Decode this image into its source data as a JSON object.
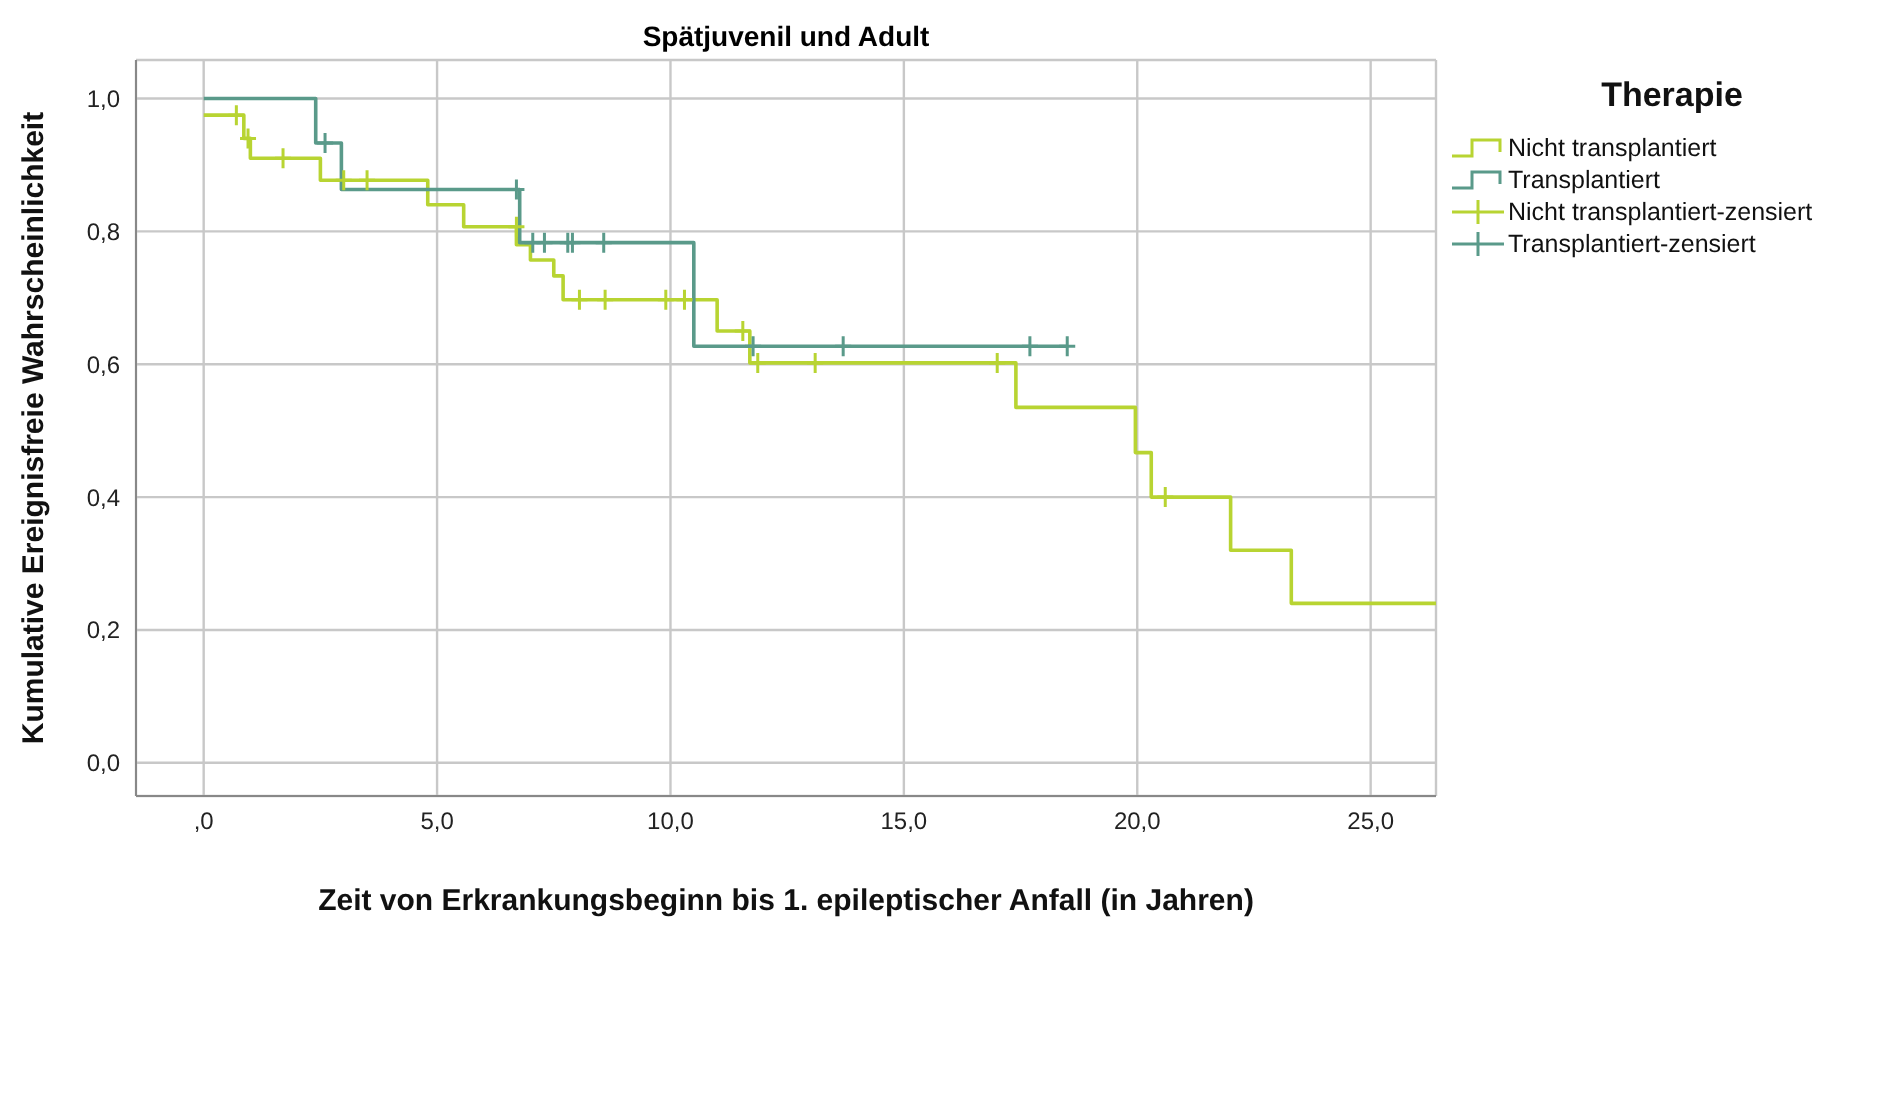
{
  "chart_data": {
    "type": "step",
    "title": "Spätjuvenil und Adult",
    "xlabel": "Zeit von Erkrankungsbeginn bis 1. epileptischer Anfall (in Jahren)",
    "ylabel": "Kumulative Ereignisfreie Wahrscheinlichkeit",
    "legend_title": "Therapie",
    "legend": "top right",
    "grid": true,
    "xlim": [
      -1.45,
      26.4
    ],
    "ylim": [
      -0.05,
      1.058
    ],
    "xticks": [
      {
        "value": 0,
        "label": ",0"
      },
      {
        "value": 5,
        "label": "5,0"
      },
      {
        "value": 10,
        "label": "10,0"
      },
      {
        "value": 15,
        "label": "15,0"
      },
      {
        "value": 20,
        "label": "20,0"
      },
      {
        "value": 25,
        "label": "25,0"
      }
    ],
    "yticks": [
      {
        "value": 0,
        "label": "0,0"
      },
      {
        "value": 0.2,
        "label": "0,2"
      },
      {
        "value": 0.4,
        "label": "0,4"
      },
      {
        "value": 0.6,
        "label": "0,6"
      },
      {
        "value": 0.8,
        "label": "0,8"
      },
      {
        "value": 1,
        "label": "1,0"
      }
    ],
    "series": [
      {
        "name": "Nicht transplantiert",
        "color": "#b8d432",
        "marker": "none",
        "x": [
          0,
          0.86,
          1.0,
          2.5,
          4.8,
          5.57,
          6.7,
          7.0,
          7.5,
          7.7,
          11.0,
          11.7,
          17.4,
          19.96,
          20.3,
          22.0,
          23.3,
          26.4
        ],
        "values": [
          0.975,
          0.94,
          0.91,
          0.877,
          0.84,
          0.807,
          0.78,
          0.757,
          0.733,
          0.697,
          0.65,
          0.602,
          0.535,
          0.467,
          0.4,
          0.32,
          0.24,
          0.24
        ]
      },
      {
        "name": "Transplantiert",
        "color": "#5a9a8a",
        "marker": "none",
        "x": [
          0,
          2.4,
          2.95,
          6.77,
          10.5,
          18.5
        ],
        "values": [
          1.0,
          0.933,
          0.863,
          0.783,
          0.627,
          0.627
        ]
      },
      {
        "name": "Nicht transplantiert-zensiert",
        "type": "scatter",
        "color": "#b8d432",
        "marker": "cross",
        "x": [
          0.7,
          0.95,
          1.7,
          3.0,
          3.5,
          6.7,
          8.05,
          8.6,
          9.9,
          10.3,
          11.55,
          11.87,
          13.1,
          17.0,
          20.6
        ],
        "values": [
          0.975,
          0.94,
          0.91,
          0.877,
          0.877,
          0.807,
          0.697,
          0.697,
          0.697,
          0.697,
          0.65,
          0.602,
          0.602,
          0.602,
          0.4
        ]
      },
      {
        "name": "Transplantiert-zensiert",
        "type": "scatter",
        "color": "#5a9a8a",
        "marker": "cross",
        "x": [
          2.6,
          6.7,
          7.05,
          7.3,
          7.8,
          7.9,
          8.57,
          11.77,
          13.7,
          17.7,
          18.5
        ],
        "values": [
          0.933,
          0.863,
          0.783,
          0.783,
          0.783,
          0.783,
          0.783,
          0.627,
          0.627,
          0.627,
          0.627
        ]
      }
    ]
  }
}
